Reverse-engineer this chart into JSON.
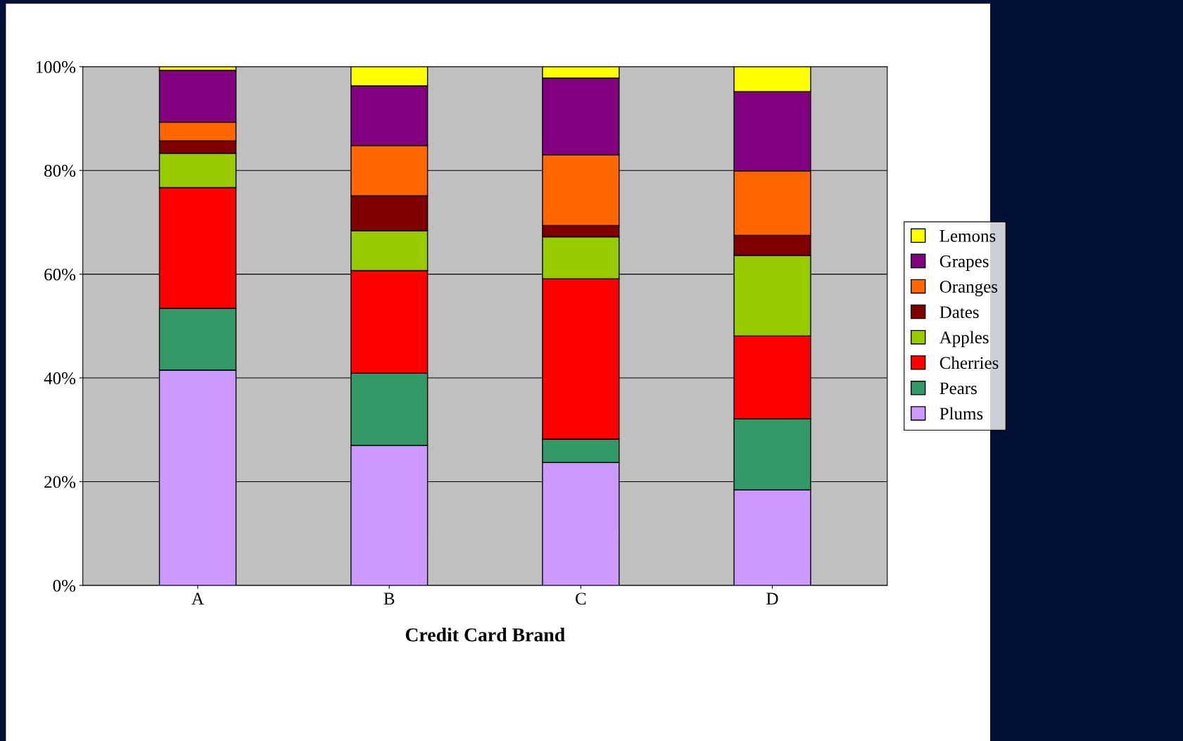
{
  "chart_data": {
    "type": "bar",
    "stacked": true,
    "xlabel": "Credit Card Brand",
    "categories": [
      "A",
      "B",
      "C",
      "D"
    ],
    "series": [
      {
        "name": "Plums",
        "color": "#cc99ff",
        "values": [
          41.5,
          27.0,
          23.7,
          18.4
        ]
      },
      {
        "name": "Pears",
        "color": "#339966",
        "values": [
          11.9,
          13.9,
          4.5,
          13.7
        ]
      },
      {
        "name": "Cherries",
        "color": "#ff0000",
        "values": [
          23.3,
          19.8,
          30.9,
          16.0
        ]
      },
      {
        "name": "Apples",
        "color": "#99cc00",
        "values": [
          6.6,
          7.7,
          8.1,
          15.5
        ]
      },
      {
        "name": "Dates",
        "color": "#800000",
        "values": [
          2.4,
          6.7,
          2.2,
          3.9
        ]
      },
      {
        "name": "Oranges",
        "color": "#ff6600",
        "values": [
          3.6,
          9.7,
          13.6,
          12.4
        ]
      },
      {
        "name": "Grapes",
        "color": "#800080",
        "values": [
          10.0,
          11.5,
          14.8,
          15.3
        ]
      },
      {
        "name": "Lemons",
        "color": "#ffff00",
        "values": [
          0.7,
          3.7,
          2.2,
          4.8
        ]
      }
    ],
    "ylim": [
      0,
      100
    ],
    "yticks": [
      {
        "value": 0,
        "label": "0%"
      },
      {
        "value": 20,
        "label": "20%"
      },
      {
        "value": 40,
        "label": "40%"
      },
      {
        "value": 60,
        "label": "60%"
      },
      {
        "value": 80,
        "label": "80%"
      },
      {
        "value": 100,
        "label": "100%"
      }
    ],
    "grid": "y",
    "legend": "right"
  }
}
